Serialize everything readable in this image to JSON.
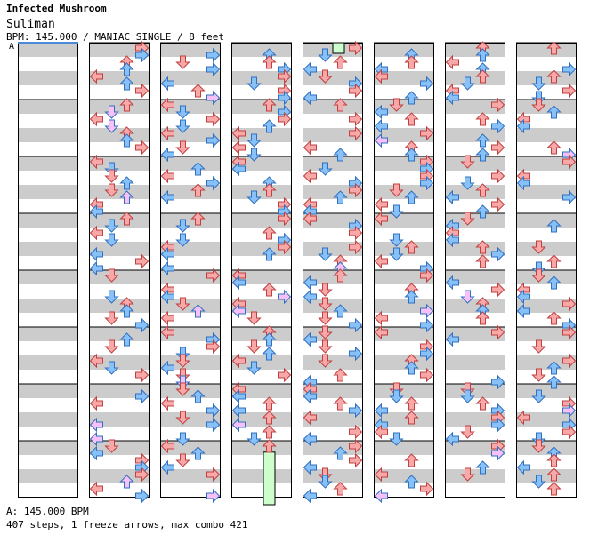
{
  "header": {
    "artist": "Infected Mushroom",
    "title": "Suliman",
    "info": "BPM: 145.000 / MANIAC SINGLE / 8 feet"
  },
  "bpm_marker": "A",
  "footer": {
    "bpm_line": "A: 145.000 BPM",
    "stats": "407 steps, 1 freeze arrows, max combo 421"
  },
  "colors": {
    "quarter_note": "#f8a8a8",
    "eighth_note": "#88c0f8",
    "sixteenth_note": "#f8c0f8",
    "freeze": "#ccffcc",
    "row_band": "#cccccc",
    "bpm_line": "#4a8ad8"
  },
  "chart_data": {
    "type": "step-chart",
    "columns": 8,
    "measures_per_column": 8,
    "lanes": [
      "left",
      "down",
      "up",
      "right"
    ],
    "freeze": {
      "column": 3,
      "lane": "up",
      "from_measure": 7.2,
      "to_measure": 8.0
    }
  }
}
